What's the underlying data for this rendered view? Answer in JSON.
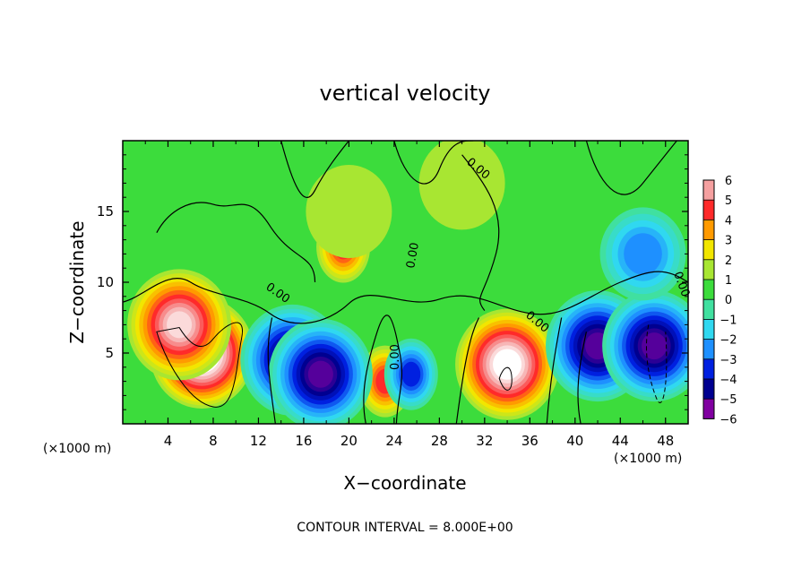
{
  "chart_data": {
    "type": "heatmap",
    "title": "vertical velocity",
    "xlabel": "X−coordinate",
    "ylabel": "Z−coordinate",
    "x_unit_left": "(×1000 m)",
    "x_unit_right": "(×1000 m)",
    "xlim": [
      0,
      50
    ],
    "ylim": [
      0,
      20
    ],
    "x_ticks": [
      4,
      8,
      12,
      16,
      20,
      24,
      28,
      32,
      36,
      40,
      44,
      48
    ],
    "y_ticks": [
      5,
      10,
      15
    ],
    "colorbar": {
      "levels": [
        6,
        5,
        4,
        3,
        2,
        1,
        0,
        -1,
        -2,
        -3,
        -4,
        -5,
        -6
      ],
      "labels": [
        "6",
        "5",
        "4",
        "3",
        "2",
        "1",
        "0",
        "−1",
        "−2",
        "−3",
        "−4",
        "−5",
        "−6"
      ]
    },
    "contour_labels": [
      "0.00",
      "0.00",
      "0.00",
      "0.00",
      "0.00",
      "0.00"
    ],
    "footer": "CONTOUR INTERVAL =  8.000E+00",
    "features": [
      {
        "x": 7,
        "z": 5.0,
        "w": 8
      },
      {
        "x": 5,
        "z": 7.0,
        "w": 6
      },
      {
        "x": 19.5,
        "z": 12.5,
        "w": 4
      },
      {
        "x": 34,
        "z": 4.2,
        "w": 7
      },
      {
        "x": 23.2,
        "z": 3.0,
        "w": 4
      },
      {
        "x": 15,
        "z": 4.5,
        "w": -6
      },
      {
        "x": 17.5,
        "z": 3.5,
        "w": -6
      },
      {
        "x": 25.5,
        "z": 3.5,
        "w": -4
      },
      {
        "x": 42,
        "z": 5.5,
        "w": -6
      },
      {
        "x": 47,
        "z": 5.5,
        "w": -6
      },
      {
        "x": 46,
        "z": 12,
        "w": -3
      },
      {
        "x": 20,
        "z": 15,
        "w": 1
      },
      {
        "x": 30,
        "z": 17,
        "w": 1
      }
    ],
    "colors": {
      "white": "#ffffff",
      "pink": "#f5a0a0",
      "red": "#ff2a2a",
      "orange": "#ff9a00",
      "yellow": "#f2e600",
      "light-green": "#a8e632",
      "green": "#3cdc3c",
      "aqua-green": "#40e0a0",
      "cyan": "#30d8f0",
      "sky-blue": "#1e90ff",
      "blue": "#0020e0",
      "dark-blue": "#000090",
      "purple": "#8000a0"
    }
  }
}
